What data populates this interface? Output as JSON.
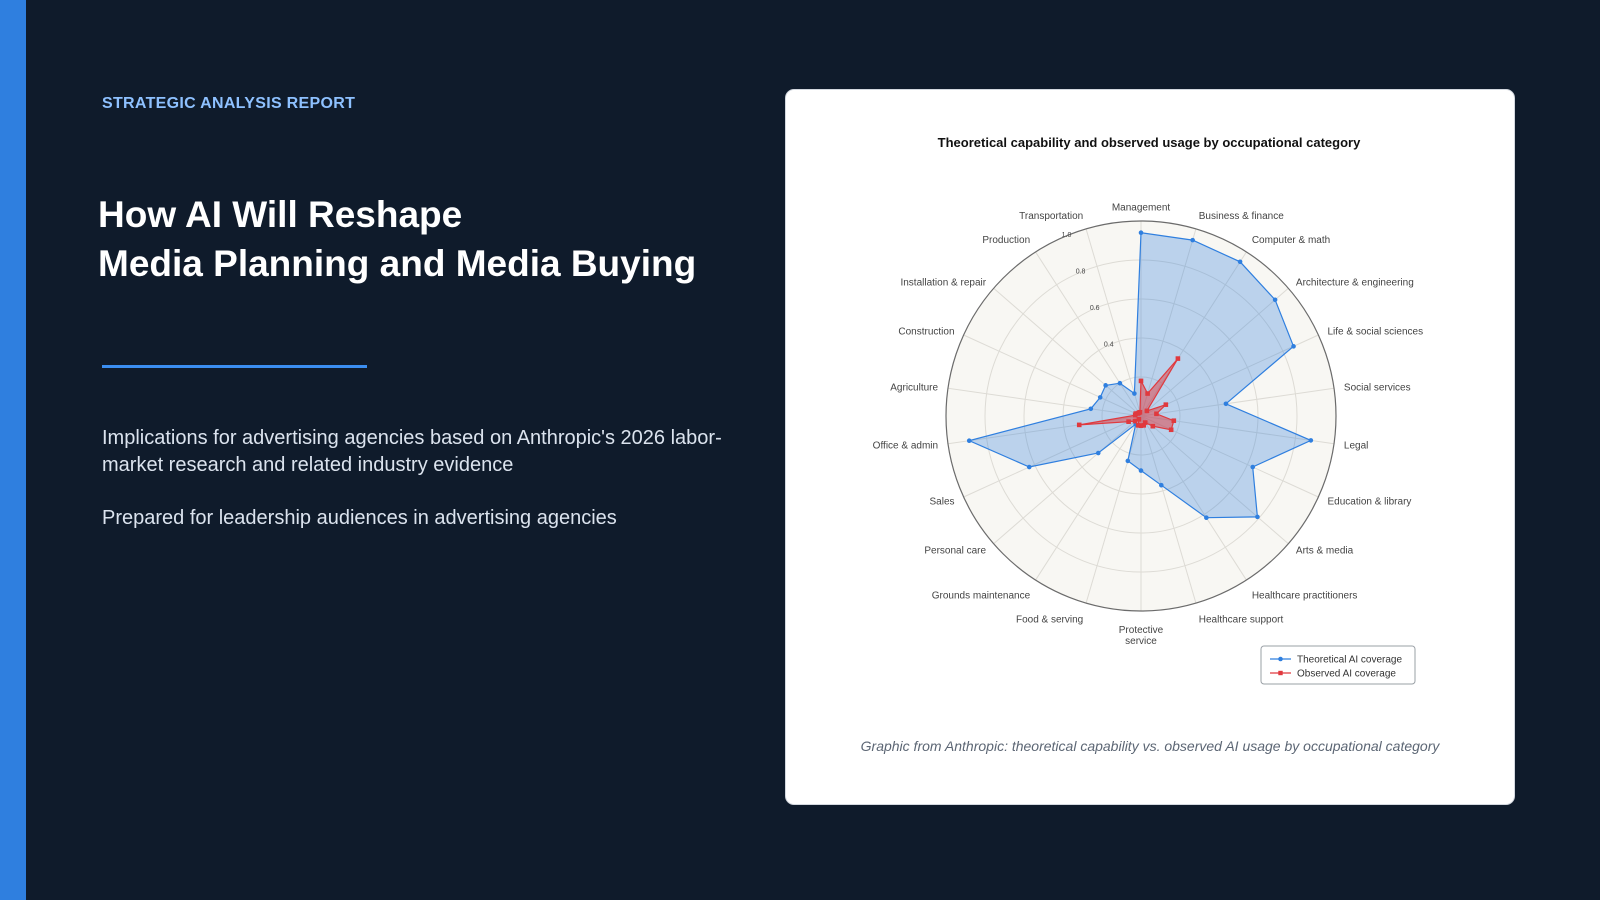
{
  "slide": {
    "eyebrow": "STRATEGIC ANALYSIS REPORT",
    "title_line1": "How AI Will Reshape",
    "title_line2": "Media Planning and Media Buying",
    "description": "Implications for advertising agencies based on Anthropic's 2026 labor-market research and related industry evidence",
    "audience": "Prepared for leadership audiences in advertising agencies",
    "caption": "Graphic from Anthropic: theoretical capability vs. observed AI usage by occupational category"
  },
  "colors": {
    "background": "#0f1b2b",
    "accent": "#2f7fdf",
    "eyebrow": "#8ec1ff",
    "theoretical": "#2f7fdf",
    "observed": "#e0393e"
  },
  "chart_data": {
    "type": "radar",
    "title": "Theoretical capability and observed usage by occupational category",
    "categories": [
      "Management",
      "Business & finance",
      "Computer & math",
      "Architecture & engineering",
      "Life & social sciences",
      "Social services",
      "Legal",
      "Education & library",
      "Arts & media",
      "Healthcare practitioners",
      "Healthcare support",
      "Protective service",
      "Food & serving",
      "Grounds maintenance",
      "Personal care",
      "Sales",
      "Office & admin",
      "Agriculture",
      "Construction",
      "Installation & repair",
      "Production",
      "Transportation"
    ],
    "rlim": [
      0,
      1.0
    ],
    "rticks": [
      0.4,
      0.6,
      0.8,
      1.0
    ],
    "series": [
      {
        "name": "Theoretical AI coverage",
        "color": "#2f7fdf",
        "marker": "circle",
        "values": [
          0.94,
          0.94,
          0.94,
          0.91,
          0.86,
          0.44,
          0.88,
          0.63,
          0.79,
          0.62,
          0.37,
          0.28,
          0.24,
          0.05,
          0.29,
          0.63,
          0.89,
          0.26,
          0.23,
          0.24,
          0.2,
          0.12
        ]
      },
      {
        "name": "Observed AI coverage",
        "color": "#e0393e",
        "marker": "square",
        "values": [
          0.18,
          0.12,
          0.35,
          0.04,
          0.14,
          0.08,
          0.17,
          0.17,
          0.08,
          0.04,
          0.05,
          0.05,
          0.05,
          0.02,
          0.04,
          0.07,
          0.32,
          0.03,
          0.03,
          0.02,
          0.02,
          0.02
        ]
      }
    ],
    "legend": "bottom-right",
    "grid": true
  }
}
